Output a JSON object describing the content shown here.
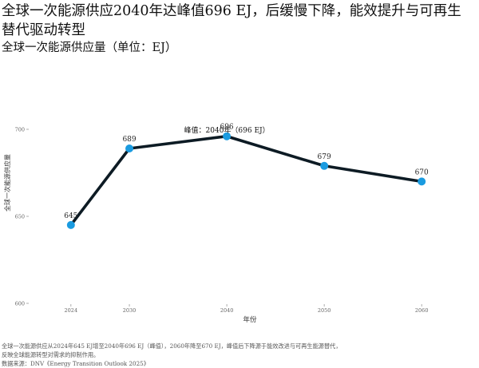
{
  "title": "全球一次能源供应2040年达峰值696 EJ，后缓慢下降，能效提升与可再生替代驱动转型",
  "subtitle": "全球一次能源供应量（单位：EJ）",
  "caption_lines": [
    "全球一次能源供应从2024年645 EJ增至2040年696 EJ（峰值），2060年降至670 EJ，峰值后下降源于能效改进与可再生能源替代，",
    "反映全球能源转型对需求的抑制作用。"
  ],
  "source": "数据来源：DNV《Energy Transition Outlook 2025》",
  "colors": {
    "line": "#0d1b24",
    "marker": "#1a9be0",
    "axis_text": "#666666"
  },
  "chart_data": {
    "type": "line",
    "xlabel": "年份",
    "ylabel": "全球一次能源供应量",
    "x": [
      2024,
      2030,
      2040,
      2050,
      2060
    ],
    "values": [
      645,
      689,
      696,
      679,
      670
    ],
    "data_labels": [
      "645",
      "689",
      "696",
      "679",
      "670"
    ],
    "x_ticks": [
      "2024",
      "2030",
      "2040",
      "2050",
      "2060"
    ],
    "y_ticks": [
      600,
      650,
      700
    ],
    "y_tick_labels": [
      "600",
      "650",
      "700"
    ],
    "ylim": [
      600,
      700
    ],
    "annotation": {
      "x": 2040,
      "text": "峰值：2040年（696 EJ）"
    },
    "grid": false
  }
}
